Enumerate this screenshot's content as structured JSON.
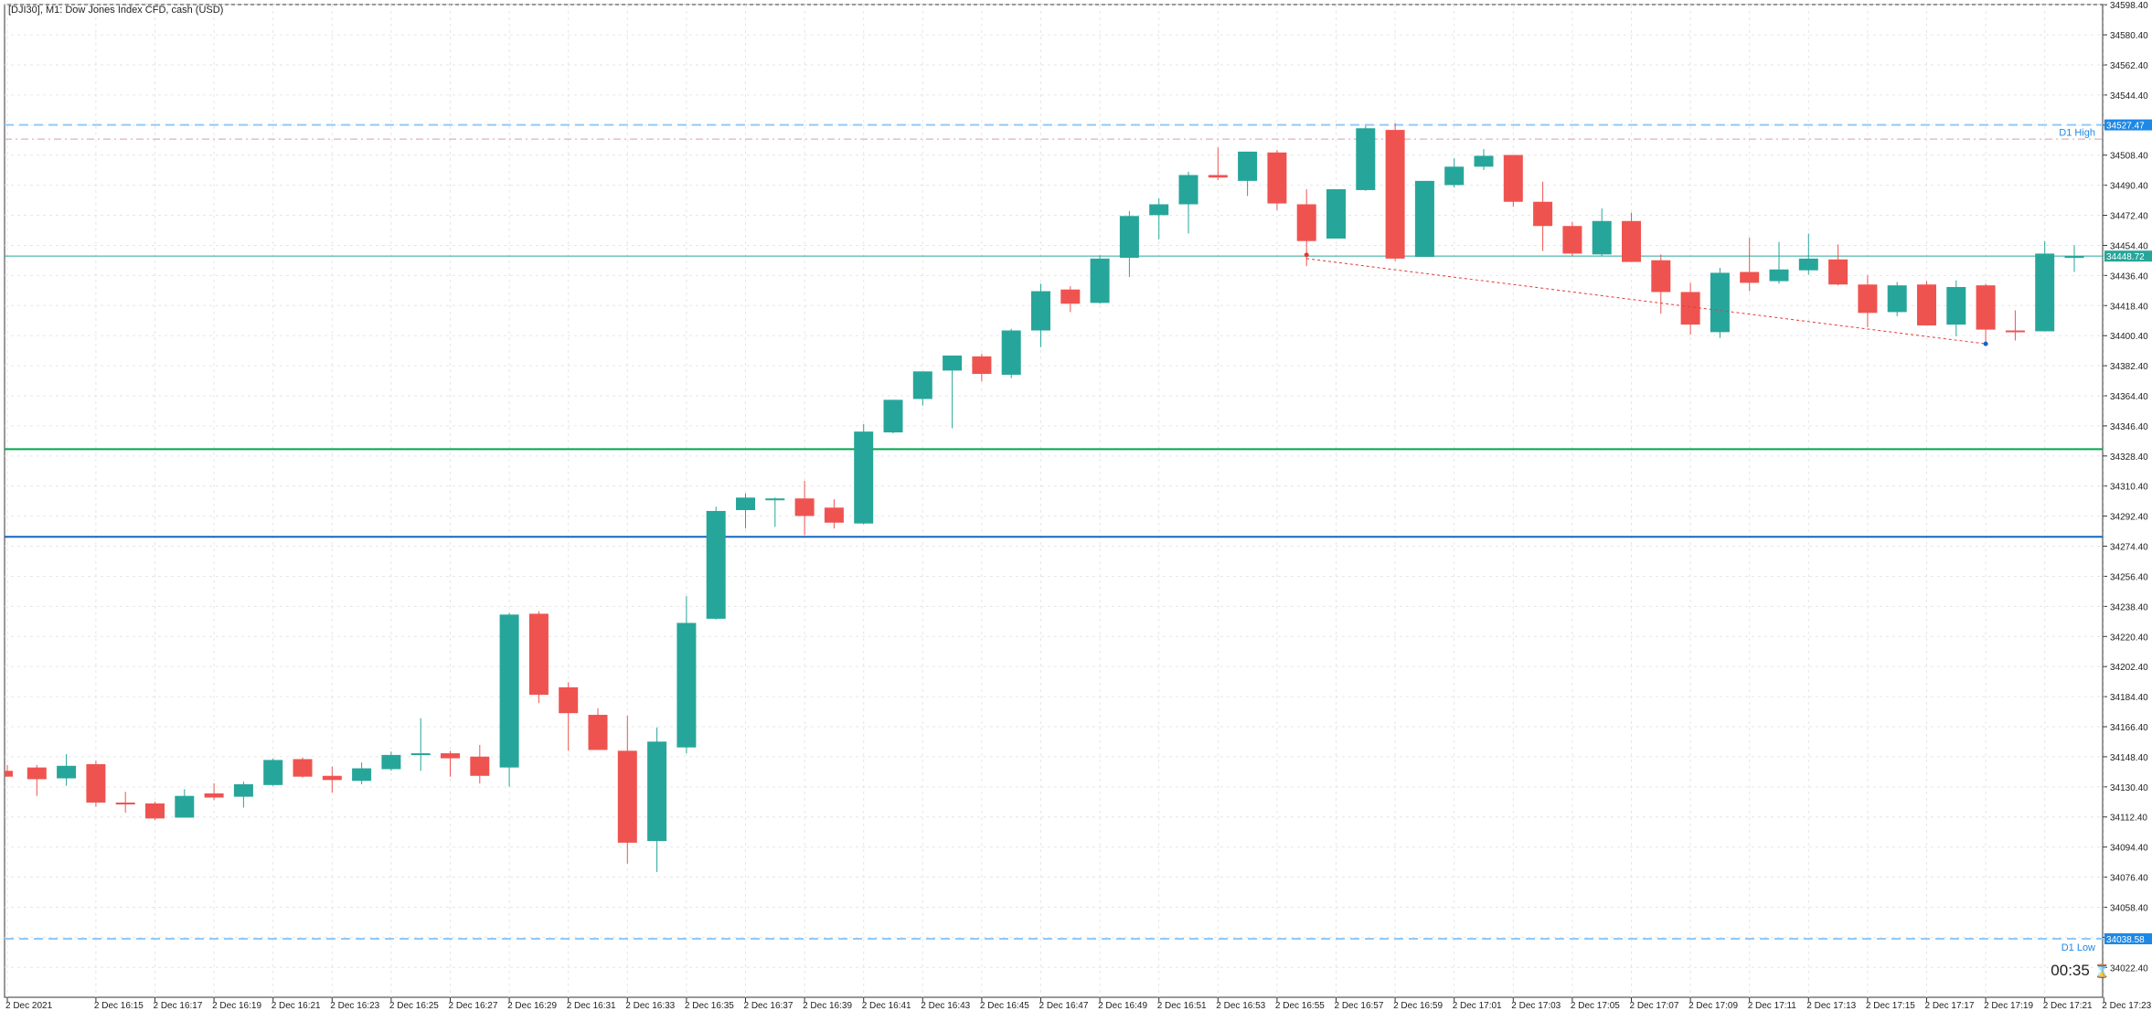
{
  "window": {
    "title": "[DJI30], M1:  Dow Jones Index CFD, cash (USD)",
    "timer": "00:35",
    "timer_icon": "hourglass-icon"
  },
  "colors": {
    "bull": "#26a69a",
    "bear": "#ef5350",
    "grid": "#e6e6e6",
    "d1_level": "#90caf9",
    "d1_label": "#1e88e5",
    "current_price": "#26a69a",
    "green_line": "#00a651",
    "blue_line": "#1565c0",
    "trend_line": "#e53935"
  },
  "chart_data": {
    "type": "candlestick",
    "symbol": "DJI30",
    "timeframe": "M1",
    "ylim": [
      34004.5,
      34598.5
    ],
    "y_ticks": [
      "34598.40",
      "34580.40",
      "34562.40",
      "34544.40",
      "34526.40",
      "34508.40",
      "34490.40",
      "34472.40",
      "34454.40",
      "34436.40",
      "34418.40",
      "34400.40",
      "34382.40",
      "34364.40",
      "34346.40",
      "34328.40",
      "34310.40",
      "34292.40",
      "34274.40",
      "34256.40",
      "34238.40",
      "34220.40",
      "34202.40",
      "34184.40",
      "34166.40",
      "34148.40",
      "34130.40",
      "34112.40",
      "34094.40",
      "34076.40",
      "34058.40",
      "34040.40",
      "34022.40"
    ],
    "x_ticks": [
      {
        "idx": 0,
        "label": "2 Dec 2021"
      },
      {
        "idx": 3,
        "label": "2 Dec 16:15"
      },
      {
        "idx": 5,
        "label": "2 Dec 16:17"
      },
      {
        "idx": 7,
        "label": "2 Dec 16:19"
      },
      {
        "idx": 9,
        "label": "2 Dec 16:21"
      },
      {
        "idx": 11,
        "label": "2 Dec 16:23"
      },
      {
        "idx": 13,
        "label": "2 Dec 16:25"
      },
      {
        "idx": 15,
        "label": "2 Dec 16:27"
      },
      {
        "idx": 17,
        "label": "2 Dec 16:29"
      },
      {
        "idx": 19,
        "label": "2 Dec 16:31"
      },
      {
        "idx": 21,
        "label": "2 Dec 16:33"
      },
      {
        "idx": 23,
        "label": "2 Dec 16:35"
      },
      {
        "idx": 25,
        "label": "2 Dec 16:37"
      },
      {
        "idx": 27,
        "label": "2 Dec 16:39"
      },
      {
        "idx": 29,
        "label": "2 Dec 16:41"
      },
      {
        "idx": 31,
        "label": "2 Dec 16:43"
      },
      {
        "idx": 33,
        "label": "2 Dec 16:45"
      },
      {
        "idx": 35,
        "label": "2 Dec 16:47"
      },
      {
        "idx": 37,
        "label": "2 Dec 16:49"
      },
      {
        "idx": 39,
        "label": "2 Dec 16:51"
      },
      {
        "idx": 41,
        "label": "2 Dec 16:53"
      },
      {
        "idx": 43,
        "label": "2 Dec 16:55"
      },
      {
        "idx": 45,
        "label": "2 Dec 16:57"
      },
      {
        "idx": 47,
        "label": "2 Dec 16:59"
      },
      {
        "idx": 49,
        "label": "2 Dec 17:01"
      },
      {
        "idx": 51,
        "label": "2 Dec 17:03"
      },
      {
        "idx": 53,
        "label": "2 Dec 17:05"
      },
      {
        "idx": 55,
        "label": "2 Dec 17:07"
      },
      {
        "idx": 57,
        "label": "2 Dec 17:09"
      },
      {
        "idx": 59,
        "label": "2 Dec 17:11"
      },
      {
        "idx": 61,
        "label": "2 Dec 17:13"
      },
      {
        "idx": 63,
        "label": "2 Dec 17:15"
      },
      {
        "idx": 65,
        "label": "2 Dec 17:17"
      },
      {
        "idx": 67,
        "label": "2 Dec 17:19"
      },
      {
        "idx": 69,
        "label": "2 Dec 17:21"
      },
      {
        "idx": 71,
        "label": "2 Dec 17:23"
      }
    ],
    "candles": [
      [
        34140.0,
        34143.5,
        34136.5,
        34136.5
      ],
      [
        34142.0,
        34143.5,
        34125.0,
        34135.0
      ],
      [
        34135.5,
        34150.0,
        34131.0,
        34143.0
      ],
      [
        34144.0,
        34146.0,
        34118.5,
        34121.0
      ],
      [
        34121.0,
        34127.5,
        34115.0,
        34120.0
      ],
      [
        34120.5,
        34121.5,
        34110.5,
        34111.5
      ],
      [
        34112.0,
        34129.0,
        34112.0,
        34125.0
      ],
      [
        34126.5,
        34132.5,
        34122.5,
        34124.0
      ],
      [
        34124.5,
        34133.5,
        34118.0,
        34132.0
      ],
      [
        34131.5,
        34147.5,
        34131.0,
        34146.5
      ],
      [
        34147.0,
        34148.0,
        34136.0,
        34136.5
      ],
      [
        34137.0,
        34142.5,
        34127.0,
        34134.5
      ],
      [
        34134.0,
        34145.0,
        34132.0,
        34141.5
      ],
      [
        34141.0,
        34151.5,
        34140.0,
        34149.5
      ],
      [
        34149.5,
        34171.5,
        34140.0,
        34150.5
      ],
      [
        34150.5,
        34152.0,
        34136.5,
        34147.5
      ],
      [
        34148.5,
        34155.5,
        34132.5,
        34137.0
      ],
      [
        34142.0,
        34234.5,
        34130.5,
        34233.5
      ],
      [
        34234.0,
        34235.5,
        34180.5,
        34185.5
      ],
      [
        34190.0,
        34193.0,
        34152.0,
        34174.5
      ],
      [
        34173.5,
        34177.5,
        34152.5,
        34152.5
      ],
      [
        34152.0,
        34173.0,
        34084.5,
        34097.0
      ],
      [
        34098.0,
        34166.0,
        34079.5,
        34157.5
      ],
      [
        34154.0,
        34244.5,
        34150.5,
        34228.5
      ],
      [
        34231.0,
        34298.0,
        34230.5,
        34295.5
      ],
      [
        34296.0,
        34306.0,
        34285.0,
        34303.5
      ],
      [
        34302.0,
        34303.5,
        34286.0,
        34303.0
      ],
      [
        34303.0,
        34313.5,
        34281.0,
        34292.5
      ],
      [
        34297.5,
        34302.5,
        34285.0,
        34288.5
      ],
      [
        34288.0,
        34347.5,
        34287.5,
        34343.0
      ],
      [
        34342.5,
        34362.0,
        34342.0,
        34362.0
      ],
      [
        34362.5,
        34379.0,
        34358.5,
        34379.0
      ],
      [
        34379.5,
        34384.5,
        34345.0,
        34388.5
      ],
      [
        34388.0,
        34389.5,
        34373.0,
        34377.5
      ],
      [
        34377.0,
        34404.5,
        34375.0,
        34403.5
      ],
      [
        34403.5,
        34431.5,
        34393.5,
        34427.0
      ],
      [
        34428.0,
        34430.0,
        34414.5,
        34419.5
      ],
      [
        34420.0,
        34448.5,
        34419.5,
        34446.5
      ],
      [
        34447.0,
        34475.0,
        34435.5,
        34472.0
      ],
      [
        34472.5,
        34482.5,
        34458.0,
        34479.0
      ],
      [
        34479.0,
        34498.5,
        34461.5,
        34496.5
      ],
      [
        34496.5,
        34513.0,
        34493.5,
        34495.0
      ],
      [
        34493.0,
        34510.5,
        34484.0,
        34510.5
      ],
      [
        34510.0,
        34511.5,
        34475.5,
        34479.5
      ],
      [
        34479.0,
        34488.0,
        34442.0,
        34457.0
      ],
      [
        34458.5,
        34488.0,
        34458.5,
        34488.0
      ],
      [
        34487.5,
        34526.0,
        34487.0,
        34524.5
      ],
      [
        34523.5,
        34527.5,
        34445.0,
        34446.5
      ],
      [
        34447.5,
        34487.5,
        34447.5,
        34493.0
      ],
      [
        34490.5,
        34506.5,
        34489.0,
        34501.5
      ],
      [
        34501.5,
        34512.0,
        34499.5,
        34508.0
      ],
      [
        34508.5,
        34503.5,
        34477.5,
        34480.5
      ],
      [
        34480.5,
        34492.5,
        34451.0,
        34466.0
      ],
      [
        34466.0,
        34468.5,
        34448.0,
        34449.5
      ],
      [
        34449.0,
        34476.5,
        34448.0,
        34469.0
      ],
      [
        34469.0,
        34474.0,
        34445.0,
        34444.5
      ],
      [
        34445.5,
        34449.0,
        34413.5,
        34426.5
      ],
      [
        34426.5,
        34432.0,
        34401.0,
        34407.0
      ],
      [
        34402.5,
        34441.0,
        34399.0,
        34438.0
      ],
      [
        34438.5,
        34459.0,
        34427.0,
        34432.0
      ],
      [
        34433.0,
        34456.5,
        34431.5,
        34440.0
      ],
      [
        34439.5,
        34461.5,
        34437.0,
        34446.5
      ],
      [
        34446.0,
        34455.0,
        34430.5,
        34431.0
      ],
      [
        34431.0,
        34436.5,
        34405.5,
        34414.0
      ],
      [
        34414.5,
        34432.5,
        34412.0,
        34430.5
      ],
      [
        34431.0,
        34433.0,
        34410.0,
        34406.5
      ],
      [
        34407.0,
        34433.5,
        34400.0,
        34429.5
      ],
      [
        34430.5,
        34431.5,
        34395.0,
        34404.0
      ],
      [
        34403.5,
        34415.5,
        34397.5,
        34403.0
      ],
      [
        34403.0,
        34457.0,
        34403.0,
        34449.5
      ],
      [
        34447.0,
        34454.5,
        34438.5,
        34448.0
      ]
    ],
    "horizontal_levels": [
      {
        "price": 34526.5,
        "label": "D1 High",
        "badge": "34527.47",
        "style": "dashed",
        "color_key": "d1_level"
      },
      {
        "price": 34518.0,
        "label": "",
        "badge": "",
        "style": "dashdot",
        "color_key": "trend_line"
      },
      {
        "price": 34448.0,
        "label": "",
        "badge": "34448.72",
        "style": "solid",
        "color_key": "current_price"
      },
      {
        "price": 34332.5,
        "label": "",
        "badge": "",
        "style": "solid-thick",
        "color_key": "green_line"
      },
      {
        "price": 34280.0,
        "label": "",
        "badge": "",
        "style": "solid-thick",
        "color_key": "blue_line"
      },
      {
        "price": 34039.5,
        "label": "D1 Low",
        "badge": "34038.58",
        "style": "dashed",
        "color_key": "d1_level"
      }
    ],
    "trendline": {
      "from": {
        "idx": 44,
        "price": 34446.5
      },
      "to": {
        "idx": 67,
        "price": 34395.5
      }
    },
    "grid": true
  }
}
